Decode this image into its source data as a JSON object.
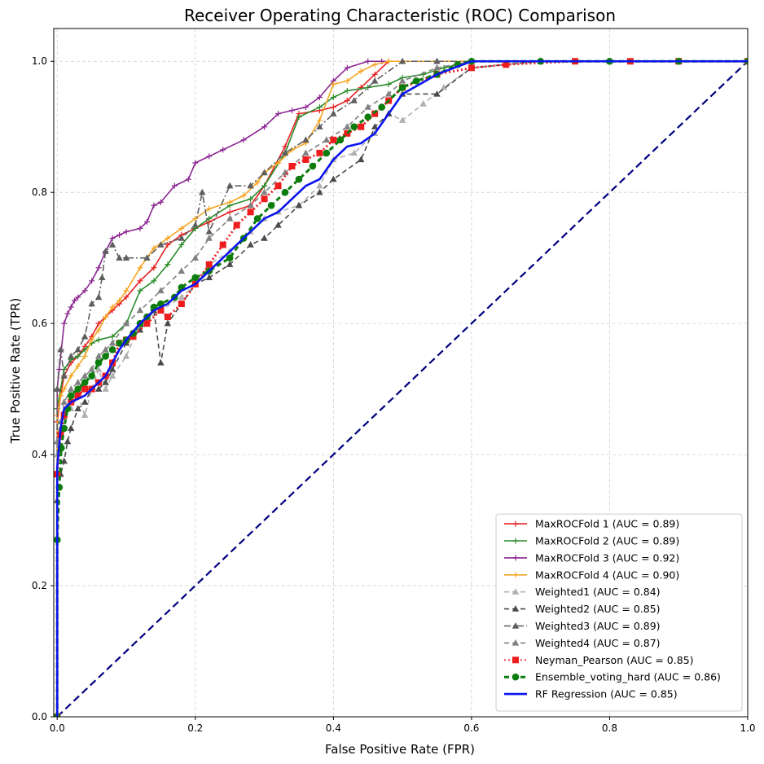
{
  "chart_data": {
    "type": "line",
    "title": "Receiver Operating Characteristic (ROC) Comparison",
    "xlabel": "False Positive Rate (FPR)",
    "ylabel": "True Positive Rate (TPR)",
    "xlim": [
      -0.005,
      1.0
    ],
    "ylim": [
      0.0,
      1.05
    ],
    "xticks": [
      0.0,
      0.2,
      0.4,
      0.6,
      0.8,
      1.0
    ],
    "xtick_labels": [
      "0.0",
      "0.2",
      "0.4",
      "0.6",
      "0.8",
      "1.0"
    ],
    "yticks": [
      0.0,
      0.2,
      0.4,
      0.6,
      0.8,
      1.0
    ],
    "ytick_labels": [
      "0.0",
      "0.2",
      "0.4",
      "0.6",
      "0.8",
      "1.0"
    ],
    "grid": true,
    "legend_position": "lower-right",
    "series": [
      {
        "name": "MaxROCFold 1 (AUC = 0.89)",
        "color": "#e62020",
        "dash": "solid",
        "marker": "plus",
        "x": [
          0,
          0,
          0.005,
          0.01,
          0.02,
          0.03,
          0.04,
          0.05,
          0.06,
          0.07,
          0.08,
          0.09,
          0.1,
          0.12,
          0.14,
          0.16,
          0.18,
          0.2,
          0.22,
          0.25,
          0.28,
          0.3,
          0.33,
          0.35,
          0.38,
          0.4,
          0.42,
          0.44,
          0.46,
          0.48,
          0.5,
          0.55,
          0.6,
          0.7,
          0.8,
          0.9,
          1.0
        ],
        "y": [
          0,
          0.45,
          0.49,
          0.52,
          0.54,
          0.55,
          0.565,
          0.58,
          0.6,
          0.61,
          0.62,
          0.63,
          0.64,
          0.665,
          0.685,
          0.72,
          0.735,
          0.745,
          0.755,
          0.77,
          0.78,
          0.81,
          0.87,
          0.92,
          0.925,
          0.93,
          0.94,
          0.96,
          0.98,
          1.0,
          1.0,
          1.0,
          1.0,
          1.0,
          1.0,
          1.0,
          1.0
        ]
      },
      {
        "name": "MaxROCFold 2 (AUC = 0.89)",
        "color": "#2a8c2a",
        "dash": "solid",
        "marker": "plus",
        "x": [
          0,
          0,
          0.005,
          0.01,
          0.02,
          0.03,
          0.04,
          0.05,
          0.06,
          0.08,
          0.1,
          0.12,
          0.14,
          0.16,
          0.18,
          0.2,
          0.22,
          0.25,
          0.28,
          0.3,
          0.33,
          0.35,
          0.38,
          0.4,
          0.42,
          0.45,
          0.48,
          0.5,
          0.53,
          0.56,
          0.6,
          0.7,
          0.8,
          0.9,
          1.0
        ],
        "y": [
          0,
          0.47,
          0.5,
          0.53,
          0.545,
          0.55,
          0.56,
          0.57,
          0.575,
          0.58,
          0.6,
          0.65,
          0.665,
          0.69,
          0.72,
          0.745,
          0.76,
          0.78,
          0.79,
          0.81,
          0.86,
          0.915,
          0.93,
          0.945,
          0.955,
          0.96,
          0.965,
          0.975,
          0.98,
          0.99,
          1.0,
          1.0,
          1.0,
          1.0,
          1.0
        ]
      },
      {
        "name": "MaxROCFold 3 (AUC = 0.92)",
        "color": "#8b2591",
        "dash": "solid",
        "marker": "plus",
        "x": [
          0,
          0,
          0.003,
          0.006,
          0.01,
          0.015,
          0.02,
          0.025,
          0.03,
          0.04,
          0.05,
          0.06,
          0.07,
          0.08,
          0.09,
          0.1,
          0.12,
          0.13,
          0.14,
          0.15,
          0.17,
          0.19,
          0.2,
          0.22,
          0.24,
          0.27,
          0.3,
          0.32,
          0.34,
          0.36,
          0.38,
          0.4,
          0.42,
          0.45,
          0.47,
          0.5,
          0.6,
          0.7,
          0.8,
          0.9,
          1.0
        ],
        "y": [
          0,
          0.5,
          0.53,
          0.56,
          0.6,
          0.615,
          0.625,
          0.635,
          0.64,
          0.65,
          0.665,
          0.685,
          0.71,
          0.73,
          0.735,
          0.74,
          0.745,
          0.755,
          0.78,
          0.785,
          0.81,
          0.82,
          0.845,
          0.855,
          0.865,
          0.88,
          0.9,
          0.92,
          0.925,
          0.93,
          0.945,
          0.97,
          0.99,
          1.0,
          1.0,
          1.0,
          1.0,
          1.0,
          1.0,
          1.0,
          1.0
        ]
      },
      {
        "name": "MaxROCFold 4 (AUC = 0.90)",
        "color": "#f5a623",
        "dash": "solid",
        "marker": "plus",
        "x": [
          0,
          0,
          0.005,
          0.01,
          0.02,
          0.03,
          0.04,
          0.05,
          0.06,
          0.07,
          0.08,
          0.09,
          0.1,
          0.12,
          0.14,
          0.16,
          0.18,
          0.2,
          0.22,
          0.25,
          0.27,
          0.29,
          0.3,
          0.32,
          0.34,
          0.36,
          0.38,
          0.4,
          0.42,
          0.44,
          0.46,
          0.48,
          0.5,
          0.6,
          0.7,
          0.8,
          0.9,
          1.0
        ],
        "y": [
          0,
          0.46,
          0.49,
          0.5,
          0.52,
          0.535,
          0.55,
          0.575,
          0.59,
          0.61,
          0.625,
          0.635,
          0.65,
          0.685,
          0.715,
          0.73,
          0.745,
          0.76,
          0.775,
          0.785,
          0.795,
          0.815,
          0.83,
          0.845,
          0.865,
          0.875,
          0.91,
          0.965,
          0.97,
          0.985,
          0.995,
          1.0,
          1.0,
          1.0,
          1.0,
          1.0,
          1.0,
          1.0
        ]
      },
      {
        "name": "Weighted1 (AUC = 0.84)",
        "color": "#b0b0b0",
        "dash": "dashed",
        "marker": "triangle",
        "x": [
          0,
          0,
          0.005,
          0.01,
          0.02,
          0.03,
          0.04,
          0.05,
          0.06,
          0.07,
          0.08,
          0.1,
          0.12,
          0.15,
          0.18,
          0.2,
          0.22,
          0.25,
          0.28,
          0.3,
          0.32,
          0.35,
          0.38,
          0.4,
          0.43,
          0.46,
          0.48,
          0.5,
          0.53,
          0.56,
          0.6,
          0.65,
          0.7,
          0.8,
          0.9,
          1.0
        ],
        "y": [
          0,
          0.4,
          0.44,
          0.46,
          0.47,
          0.49,
          0.46,
          0.5,
          0.53,
          0.5,
          0.52,
          0.55,
          0.6,
          0.62,
          0.64,
          0.66,
          0.69,
          0.71,
          0.74,
          0.76,
          0.77,
          0.78,
          0.81,
          0.85,
          0.86,
          0.89,
          0.92,
          0.91,
          0.935,
          0.96,
          0.99,
          0.995,
          1.0,
          1.0,
          1.0,
          1.0
        ]
      },
      {
        "name": "Weighted2 (AUC = 0.85)",
        "color": "#4a4a4a",
        "dash": "dashed",
        "marker": "triangle",
        "x": [
          0,
          0,
          0.005,
          0.01,
          0.015,
          0.02,
          0.03,
          0.04,
          0.05,
          0.06,
          0.07,
          0.08,
          0.1,
          0.12,
          0.14,
          0.15,
          0.16,
          0.18,
          0.2,
          0.22,
          0.25,
          0.28,
          0.3,
          0.32,
          0.35,
          0.38,
          0.4,
          0.44,
          0.46,
          0.48,
          0.5,
          0.55,
          0.6,
          0.7,
          0.8,
          0.9,
          1.0
        ],
        "y": [
          0,
          0.33,
          0.37,
          0.39,
          0.42,
          0.44,
          0.47,
          0.48,
          0.5,
          0.5,
          0.51,
          0.53,
          0.57,
          0.59,
          0.62,
          0.54,
          0.6,
          0.63,
          0.66,
          0.67,
          0.69,
          0.72,
          0.73,
          0.75,
          0.78,
          0.8,
          0.82,
          0.85,
          0.9,
          0.92,
          0.95,
          0.95,
          0.99,
          1.0,
          1.0,
          1.0,
          1.0
        ]
      },
      {
        "name": "Weighted3 (AUC = 0.89)",
        "color": "#5e5e5e",
        "dash": "dashdot",
        "marker": "triangle",
        "x": [
          0,
          0,
          0.005,
          0.01,
          0.02,
          0.03,
          0.04,
          0.05,
          0.06,
          0.065,
          0.07,
          0.08,
          0.09,
          0.1,
          0.13,
          0.15,
          0.18,
          0.2,
          0.21,
          0.22,
          0.25,
          0.28,
          0.3,
          0.33,
          0.36,
          0.38,
          0.4,
          0.43,
          0.46,
          0.5,
          0.55,
          0.6,
          0.7,
          0.8,
          0.9,
          1.0
        ],
        "y": [
          0,
          0.5,
          0.56,
          0.52,
          0.55,
          0.56,
          0.58,
          0.63,
          0.64,
          0.67,
          0.71,
          0.72,
          0.7,
          0.7,
          0.7,
          0.72,
          0.73,
          0.75,
          0.8,
          0.74,
          0.81,
          0.81,
          0.83,
          0.86,
          0.88,
          0.9,
          0.92,
          0.94,
          0.97,
          1.0,
          1.0,
          1.0,
          1.0,
          1.0,
          1.0,
          1.0
        ]
      },
      {
        "name": "Weighted4 (AUC = 0.87)",
        "color": "#808080",
        "dash": "dashed",
        "marker": "triangle",
        "x": [
          0,
          0,
          0.005,
          0.01,
          0.02,
          0.03,
          0.04,
          0.05,
          0.06,
          0.07,
          0.08,
          0.1,
          0.12,
          0.15,
          0.18,
          0.2,
          0.22,
          0.25,
          0.28,
          0.3,
          0.33,
          0.36,
          0.39,
          0.42,
          0.45,
          0.48,
          0.5,
          0.55,
          0.6,
          0.7,
          0.8,
          0.9,
          1.0
        ],
        "y": [
          0,
          0.42,
          0.45,
          0.48,
          0.5,
          0.51,
          0.52,
          0.53,
          0.55,
          0.56,
          0.57,
          0.6,
          0.62,
          0.65,
          0.68,
          0.7,
          0.73,
          0.76,
          0.78,
          0.8,
          0.83,
          0.86,
          0.88,
          0.9,
          0.93,
          0.95,
          0.97,
          0.99,
          1.0,
          1.0,
          1.0,
          1.0,
          1.0
        ]
      },
      {
        "name": "Neyman_Pearson (AUC = 0.85)",
        "color": "#ee1c1c",
        "dash": "dotted",
        "marker": "square",
        "x": [
          0,
          0,
          0.005,
          0.01,
          0.02,
          0.03,
          0.04,
          0.05,
          0.06,
          0.07,
          0.08,
          0.09,
          0.1,
          0.11,
          0.13,
          0.15,
          0.16,
          0.18,
          0.2,
          0.22,
          0.24,
          0.26,
          0.28,
          0.3,
          0.32,
          0.34,
          0.36,
          0.38,
          0.4,
          0.42,
          0.44,
          0.46,
          0.48,
          0.5,
          0.55,
          0.6,
          0.65,
          0.75,
          0.83,
          0.9,
          1.0
        ],
        "y": [
          0,
          0.37,
          0.43,
          0.46,
          0.48,
          0.49,
          0.5,
          0.5,
          0.51,
          0.52,
          0.54,
          0.57,
          0.575,
          0.58,
          0.6,
          0.62,
          0.61,
          0.63,
          0.66,
          0.69,
          0.72,
          0.75,
          0.77,
          0.79,
          0.81,
          0.84,
          0.85,
          0.86,
          0.88,
          0.89,
          0.9,
          0.92,
          0.94,
          0.96,
          0.98,
          0.99,
          0.995,
          1.0,
          1.0,
          1.0,
          1.0
        ]
      },
      {
        "name": "Ensemble_voting_hard (AUC = 0.86)",
        "color": "#0c7c0c",
        "dash": "dashed",
        "marker": "circle",
        "x": [
          0,
          0,
          0.003,
          0.006,
          0.01,
          0.015,
          0.02,
          0.03,
          0.04,
          0.05,
          0.06,
          0.07,
          0.08,
          0.09,
          0.1,
          0.11,
          0.12,
          0.13,
          0.14,
          0.15,
          0.17,
          0.18,
          0.2,
          0.22,
          0.25,
          0.27,
          0.29,
          0.31,
          0.33,
          0.35,
          0.37,
          0.39,
          0.41,
          0.43,
          0.45,
          0.47,
          0.5,
          0.52,
          0.55,
          0.58,
          0.6,
          0.7,
          0.8,
          0.9,
          1.0
        ],
        "y": [
          0,
          0.27,
          0.35,
          0.41,
          0.44,
          0.47,
          0.49,
          0.5,
          0.51,
          0.52,
          0.54,
          0.55,
          0.56,
          0.57,
          0.575,
          0.585,
          0.6,
          0.61,
          0.625,
          0.63,
          0.64,
          0.655,
          0.67,
          0.68,
          0.7,
          0.73,
          0.76,
          0.78,
          0.8,
          0.82,
          0.84,
          0.86,
          0.88,
          0.9,
          0.915,
          0.93,
          0.96,
          0.97,
          0.98,
          0.995,
          1.0,
          1.0,
          1.0,
          1.0,
          1.0
        ]
      },
      {
        "name": "RF Regression (AUC = 0.85)",
        "color": "#0a14f0",
        "dash": "solid",
        "marker": "none",
        "x": [
          0,
          0,
          0.005,
          0.01,
          0.02,
          0.03,
          0.04,
          0.05,
          0.06,
          0.07,
          0.08,
          0.09,
          0.1,
          0.12,
          0.14,
          0.16,
          0.18,
          0.2,
          0.22,
          0.24,
          0.26,
          0.28,
          0.3,
          0.32,
          0.34,
          0.36,
          0.38,
          0.4,
          0.42,
          0.44,
          0.46,
          0.48,
          0.5,
          0.55,
          0.6,
          0.7,
          0.8,
          0.9,
          1.0
        ],
        "y": [
          0,
          0.38,
          0.44,
          0.47,
          0.48,
          0.485,
          0.49,
          0.5,
          0.51,
          0.52,
          0.54,
          0.56,
          0.575,
          0.6,
          0.62,
          0.63,
          0.65,
          0.66,
          0.68,
          0.7,
          0.72,
          0.74,
          0.76,
          0.77,
          0.79,
          0.81,
          0.82,
          0.85,
          0.87,
          0.875,
          0.89,
          0.92,
          0.95,
          0.98,
          1.0,
          1.0,
          1.0,
          1.0,
          1.0
        ]
      },
      {
        "name": "",
        "color": "#000080",
        "dash": "longdash",
        "marker": "none",
        "legend": false,
        "x": [
          0,
          1
        ],
        "y": [
          0,
          1
        ]
      }
    ]
  }
}
